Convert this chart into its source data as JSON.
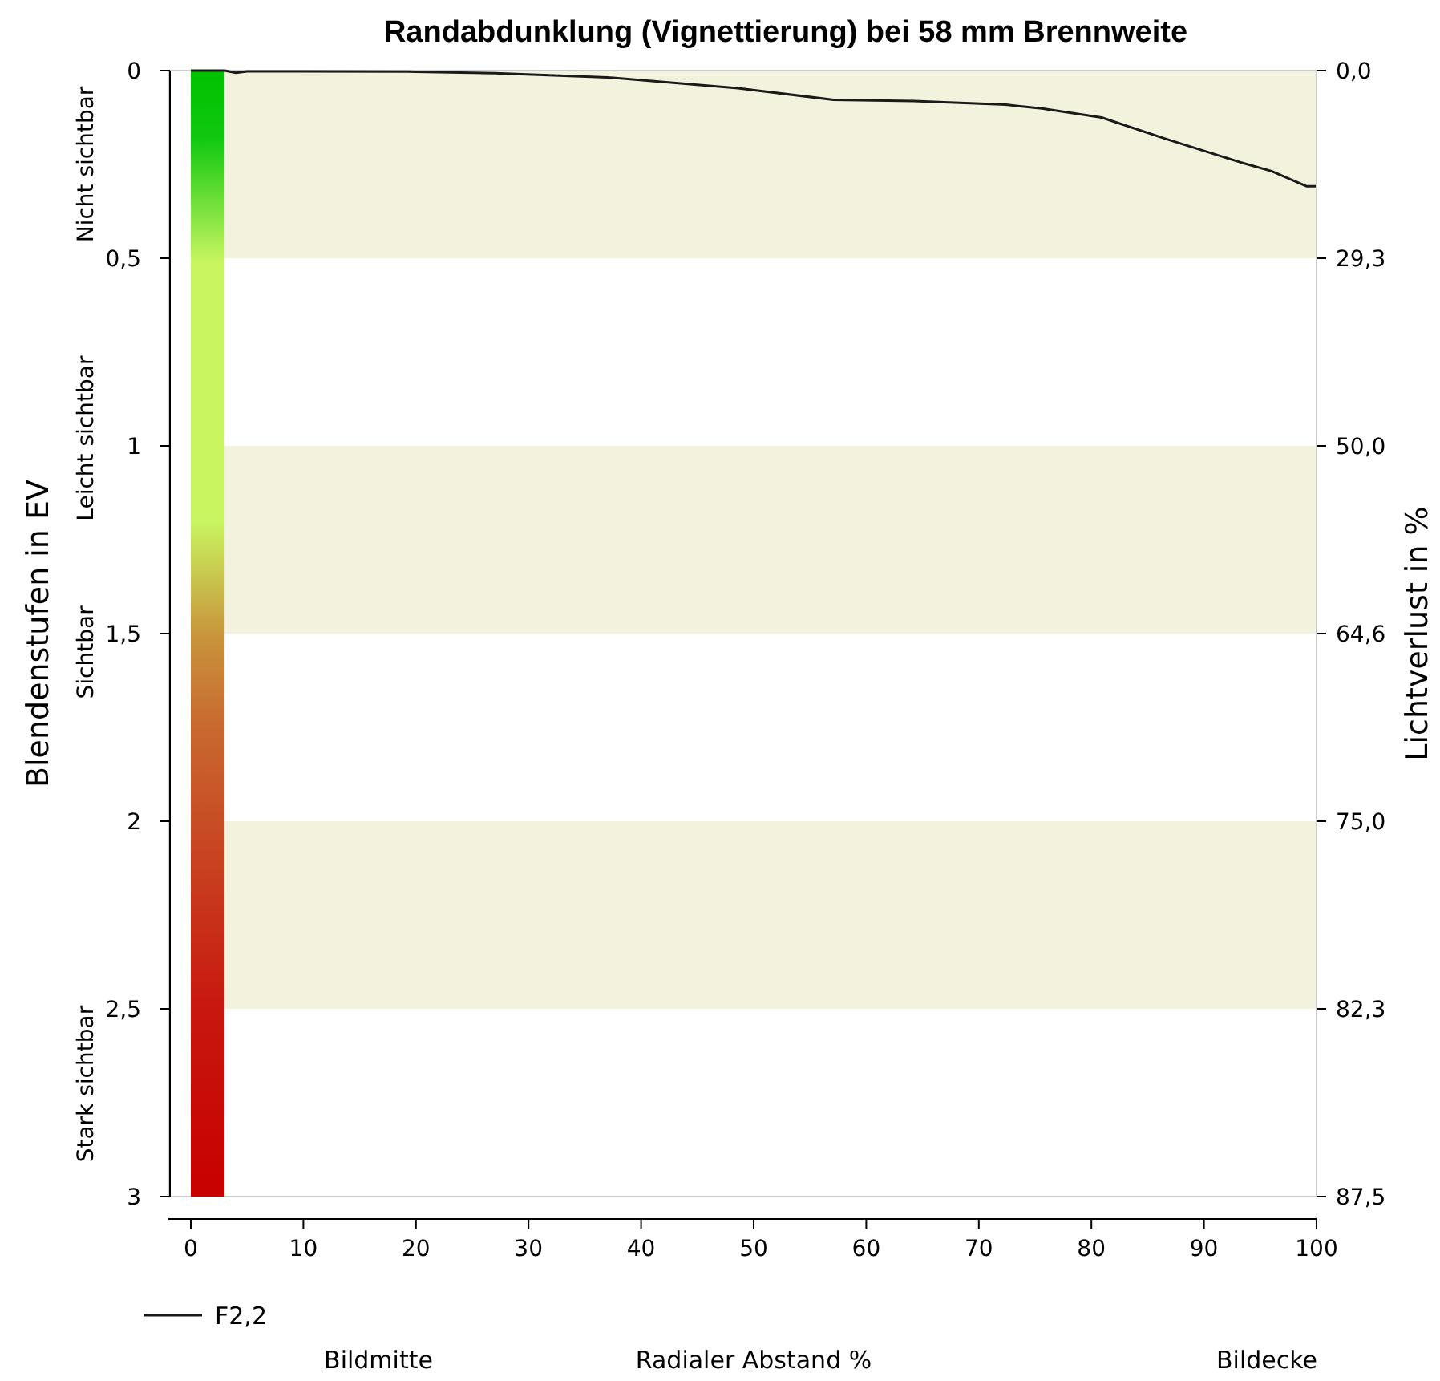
{
  "chart_data": {
    "type": "line",
    "title": "Randabdunklung (Vignettierung) bei 58 mm Brennweite",
    "xlabel": "Radialer Abstand %",
    "ylabel": "Blendenstufen in EV",
    "y2label": "Lichtverlust in %",
    "x": [
      0,
      3,
      4,
      5,
      10,
      20,
      27,
      37,
      48.6,
      57.1,
      64.2,
      72.4,
      75.6,
      80.9,
      86.6,
      93.2,
      96,
      99.1,
      100
    ],
    "series": [
      {
        "name": "F2,2",
        "color": "#1a1a1a",
        "values": [
          0,
          0,
          0.006,
          0.002,
          0.002,
          0.003,
          0.007,
          0.018,
          0.047,
          0.078,
          0.081,
          0.091,
          0.101,
          0.125,
          0.182,
          0.244,
          0.268,
          0.308,
          0.308
        ]
      }
    ],
    "xlim": [
      -2,
      100
    ],
    "xticks": [
      0,
      10,
      20,
      30,
      40,
      50,
      60,
      70,
      80,
      90,
      100
    ],
    "ylim": [
      3,
      0
    ],
    "yticks": [
      0,
      {
        "value": 0.5,
        "label": "0,5"
      },
      1,
      {
        "value": 1.5,
        "label": "1,5"
      },
      2,
      {
        "value": 2.5,
        "label": "2,5"
      },
      3
    ],
    "bands": [
      {
        "axis": "y",
        "from": 0,
        "to": 0.5,
        "color": "#f3f2dc"
      },
      {
        "axis": "y",
        "from": 1,
        "to": 1.5,
        "color": "#f3f2dc"
      },
      {
        "axis": "y",
        "from": 2,
        "to": 2.5,
        "color": "#f3f2dc"
      },
      {
        "axis": "x",
        "from": 0,
        "to": 3
      }
    ],
    "annotations": [
      "Nicht sichtbar",
      "Leicht sichtbar",
      "Sichtbar",
      "Stark sichtbar",
      "Bildmitte",
      "Bildecke",
      "0,0",
      "29,3",
      "50,0",
      "64,6",
      "75,0",
      "82,3",
      "87,5"
    ],
    "legend": "bottom left",
    "grid": false,
    "marker": "none",
    "line_style": "solid"
  }
}
